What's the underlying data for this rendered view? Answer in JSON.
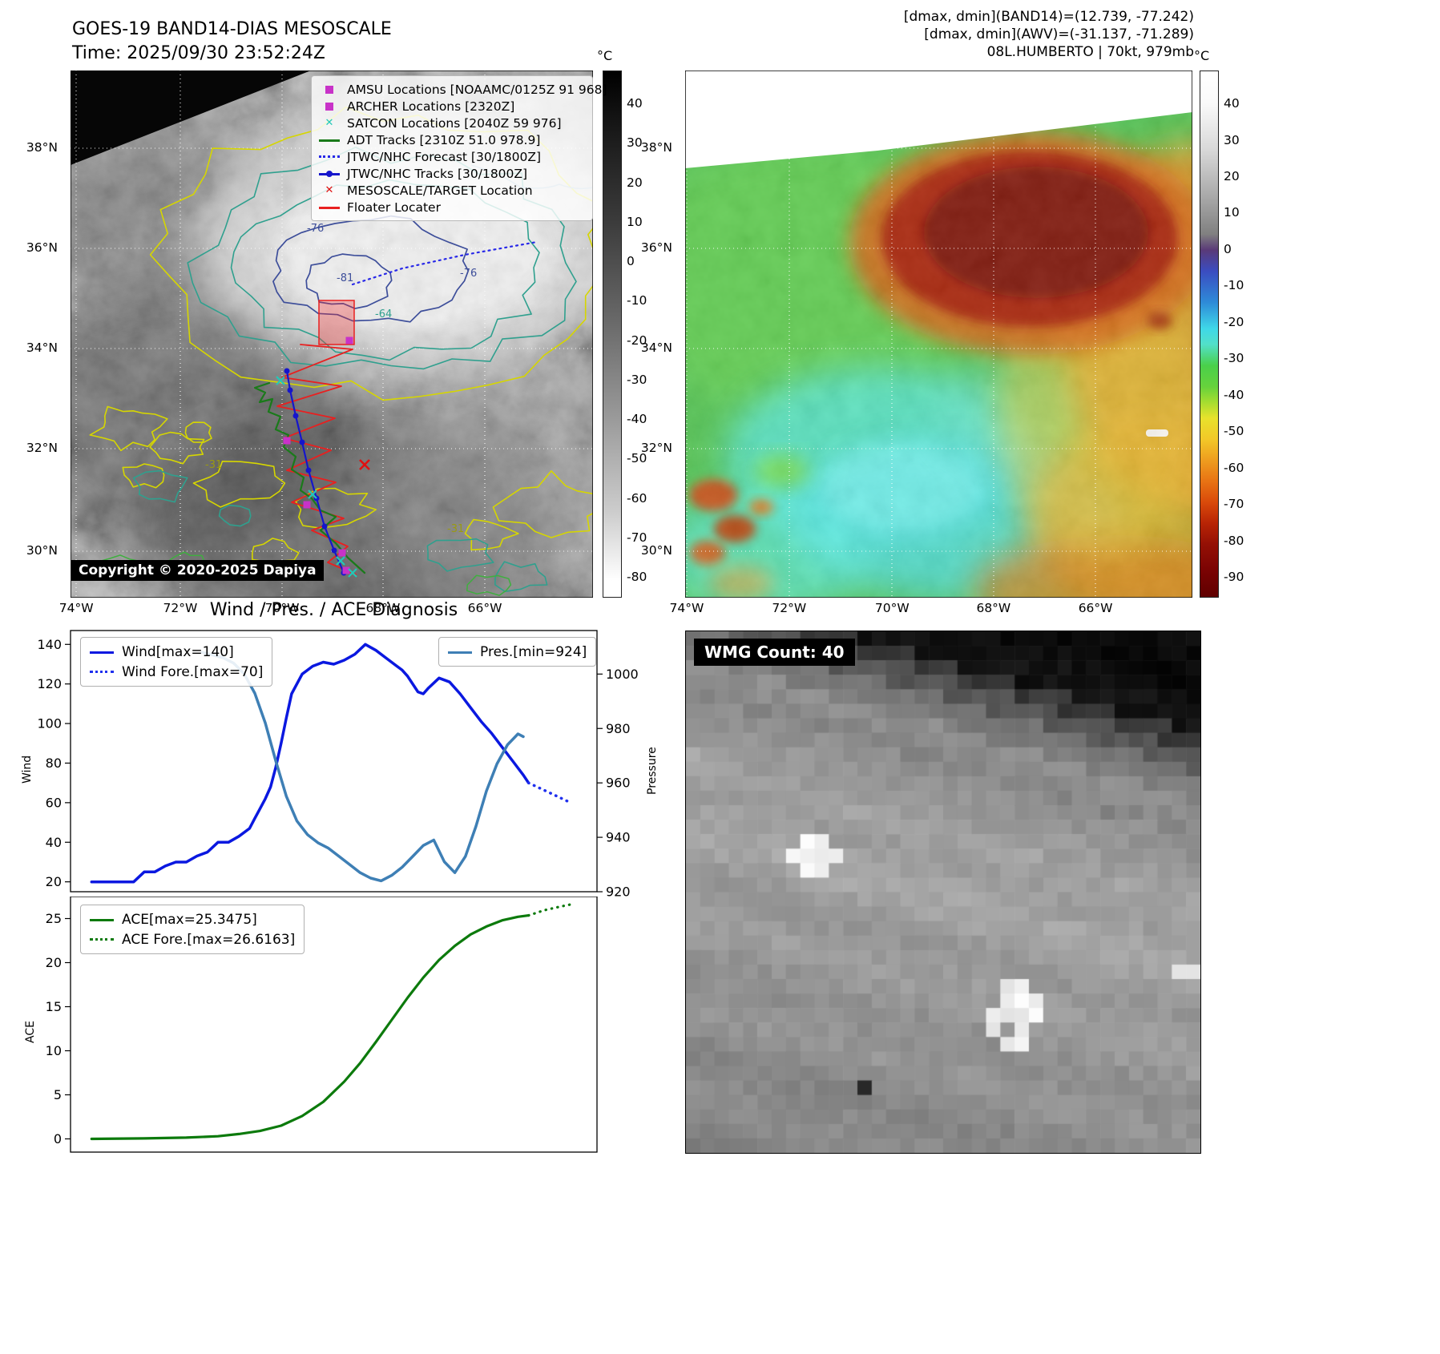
{
  "header": {
    "tl_title": "GOES-19 BAND14-DIAS MESOSCALE",
    "tl_subtitle": "Time: 2025/09/30 23:52:24Z",
    "tr_line1": "[dmax, dmin](BAND14)=(12.739, -77.242)",
    "tr_line2": "[dmax, dmin](AWV)=(-31.137, -71.289)",
    "tr_line3": "08L.HUMBERTO | 70kt, 979mb"
  },
  "band14_map": {
    "legend": [
      {
        "label": "AMSU Locations [NOAAMC/0125Z 91 968]",
        "marker": "square",
        "color": "#c832c8"
      },
      {
        "label": "ARCHER Locations [2320Z]",
        "marker": "square",
        "color": "#c832c8"
      },
      {
        "label": "SATCON Locations [2040Z 59 976]",
        "marker": "x",
        "color": "#22c8b8"
      },
      {
        "label": "ADT Tracks [2310Z 51.0 978.9]",
        "marker": "line",
        "color": "#1a7a1a"
      },
      {
        "label": "JTWC/NHC Forecast [30/1800Z]",
        "marker": "dotted",
        "color": "#2828e8"
      },
      {
        "label": "JTWC/NHC Tracks [30/1800Z]",
        "marker": "linedot",
        "color": "#1515cc"
      },
      {
        "label": "MESOSCALE/TARGET Location",
        "marker": "x",
        "color": "#e01010"
      },
      {
        "label": "Floater Locater",
        "marker": "line",
        "color": "#e82020"
      }
    ],
    "copyright": "Copyright © 2020-2025 Dapiya",
    "lat_ticks": [
      "38°N",
      "36°N",
      "34°N",
      "32°N",
      "30°N"
    ],
    "lon_ticks": [
      "74°W",
      "72°W",
      "70°W",
      "68°W",
      "66°W"
    ],
    "contour_labels": {
      "a": "-76",
      "b": "-81",
      "c": "-76",
      "d": "-64",
      "e": "-31",
      "f": "-31"
    },
    "colorbar": {
      "unit": "°C",
      "ticks": [
        "40",
        "30",
        "20",
        "10",
        "0",
        "-10",
        "-20",
        "-30",
        "-40",
        "-50",
        "-60",
        "-70",
        "-80"
      ]
    }
  },
  "awv_map": {
    "lat_ticks": [
      "38°N",
      "36°N",
      "34°N",
      "32°N",
      "30°N"
    ],
    "lon_ticks": [
      "74°W",
      "72°W",
      "70°W",
      "68°W",
      "66°W"
    ],
    "colorbar": {
      "unit": "°C",
      "ticks": [
        "40",
        "30",
        "20",
        "10",
        "0",
        "-10",
        "-20",
        "-30",
        "-40",
        "-50",
        "-60",
        "-70",
        "-80",
        "-90"
      ]
    }
  },
  "diagnosis": {
    "title": "Wind / Pres. / ACE Diagnosis",
    "ylabel_wind": "Wind",
    "ylabel_pressure": "Pressure",
    "ylabel_ace": "ACE"
  },
  "wmg": {
    "label": "WMG Count: 40"
  },
  "chart_data": [
    {
      "type": "line",
      "title": "Wind / Pres. / ACE Diagnosis",
      "ylabel_left": "Wind",
      "ylabel_right": "Pressure",
      "y_left_ticks": [
        20,
        40,
        60,
        80,
        100,
        120,
        140
      ],
      "y_left_lim": [
        15,
        147
      ],
      "y_right_ticks": [
        920,
        940,
        960,
        980,
        1000
      ],
      "y_right_lim": [
        920,
        1016
      ],
      "x_lim": [
        0,
        100
      ],
      "grid": false,
      "series": [
        {
          "name": "Wind[max=140]",
          "axis": "left",
          "style": "solid",
          "color": "#0a18e0",
          "width": 3.5,
          "x": [
            4,
            12,
            14,
            16,
            18,
            20,
            22,
            24,
            26,
            28,
            30,
            32,
            34,
            35,
            36,
            37,
            38,
            39,
            40,
            41,
            42,
            44,
            46,
            48,
            50,
            52,
            54,
            56,
            58,
            60,
            62,
            63,
            64,
            66,
            67,
            68,
            70,
            72,
            74,
            76,
            78,
            80,
            82,
            84,
            86,
            87
          ],
          "y": [
            20,
            20,
            25,
            25,
            28,
            30,
            30,
            33,
            35,
            40,
            40,
            43,
            47,
            52,
            57,
            62,
            68,
            78,
            90,
            103,
            115,
            125,
            129,
            131,
            130,
            132,
            135,
            140,
            137,
            133,
            129,
            127,
            124,
            116,
            115,
            118,
            123,
            121,
            115,
            108,
            101,
            95,
            88,
            81,
            74,
            70
          ]
        },
        {
          "name": "Wind Fore.[max=70]",
          "axis": "left",
          "style": "dotted",
          "color": "#2030ee",
          "width": 3.5,
          "x": [
            87,
            91,
            95
          ],
          "y": [
            70,
            65,
            60
          ]
        },
        {
          "name": "Pres.[min=924]",
          "axis": "right",
          "style": "solid",
          "color": "#3e7fb5",
          "width": 3.5,
          "x": [
            25,
            27,
            29,
            31,
            33,
            35,
            37,
            39,
            41,
            43,
            45,
            47,
            49,
            51,
            53,
            55,
            57,
            59,
            61,
            63,
            65,
            67,
            69,
            71,
            73,
            75,
            77,
            79,
            81,
            83,
            85,
            86
          ],
          "y": [
            1008,
            1007,
            1006,
            1004,
            1000,
            993,
            982,
            968,
            955,
            946,
            941,
            938,
            936,
            933,
            930,
            927,
            925,
            924,
            926,
            929,
            933,
            937,
            939,
            931,
            927,
            933,
            944,
            957,
            967,
            974,
            978,
            977
          ]
        }
      ]
    },
    {
      "type": "line",
      "ylabel_left": "ACE",
      "y_left_ticks": [
        0,
        5,
        10,
        15,
        20,
        25
      ],
      "y_left_lim": [
        -1.5,
        27.5
      ],
      "x_lim": [
        0,
        100
      ],
      "grid": false,
      "series": [
        {
          "name": "ACE[max=25.3475]",
          "axis": "left",
          "style": "solid",
          "color": "#0c7a0c",
          "width": 3.2,
          "x": [
            4,
            14,
            22,
            28,
            32,
            36,
            40,
            44,
            48,
            52,
            55,
            58,
            61,
            64,
            67,
            70,
            73,
            76,
            79,
            82,
            85,
            87
          ],
          "y": [
            0,
            0.05,
            0.15,
            0.3,
            0.55,
            0.9,
            1.5,
            2.6,
            4.2,
            6.5,
            8.6,
            11,
            13.5,
            16,
            18.3,
            20.3,
            21.9,
            23.2,
            24.1,
            24.8,
            25.2,
            25.35
          ]
        },
        {
          "name": "ACE Fore.[max=26.6163]",
          "axis": "left",
          "style": "dotted",
          "color": "#0c7a0c",
          "width": 3.2,
          "x": [
            87,
            90,
            93,
            95
          ],
          "y": [
            25.35,
            25.95,
            26.35,
            26.6
          ]
        }
      ]
    }
  ]
}
